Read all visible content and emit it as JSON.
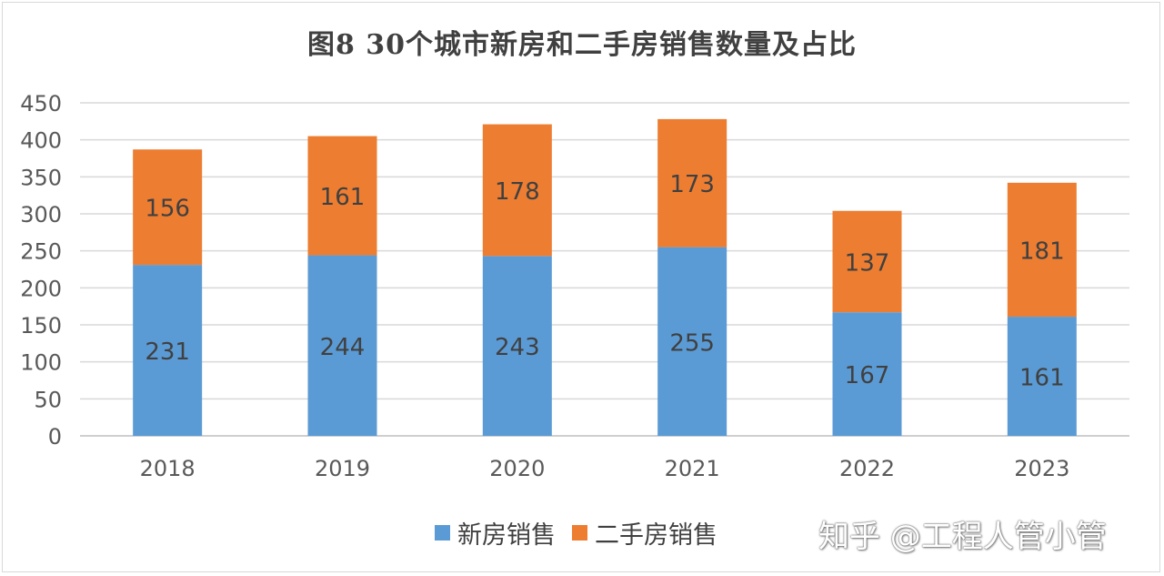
{
  "chart_data": {
    "type": "bar",
    "stacked": true,
    "title": "图8 30个城市新房和二手房销售数量及占比",
    "categories": [
      "2018",
      "2019",
      "2020",
      "2021",
      "2022",
      "2023"
    ],
    "series": [
      {
        "name": "新房销售",
        "color": "#5b9bd5",
        "values": [
          231,
          244,
          243,
          255,
          167,
          161
        ]
      },
      {
        "name": "二手房销售",
        "color": "#ed7d31",
        "values": [
          156,
          161,
          178,
          173,
          137,
          181
        ]
      }
    ],
    "ylim": [
      0,
      450
    ],
    "yticks": [
      "0",
      "50",
      "100",
      "150",
      "200",
      "250",
      "300",
      "350",
      "400",
      "450"
    ],
    "grid": true,
    "legend_position": "bottom"
  },
  "watermark": "知乎 @工程人管小管"
}
